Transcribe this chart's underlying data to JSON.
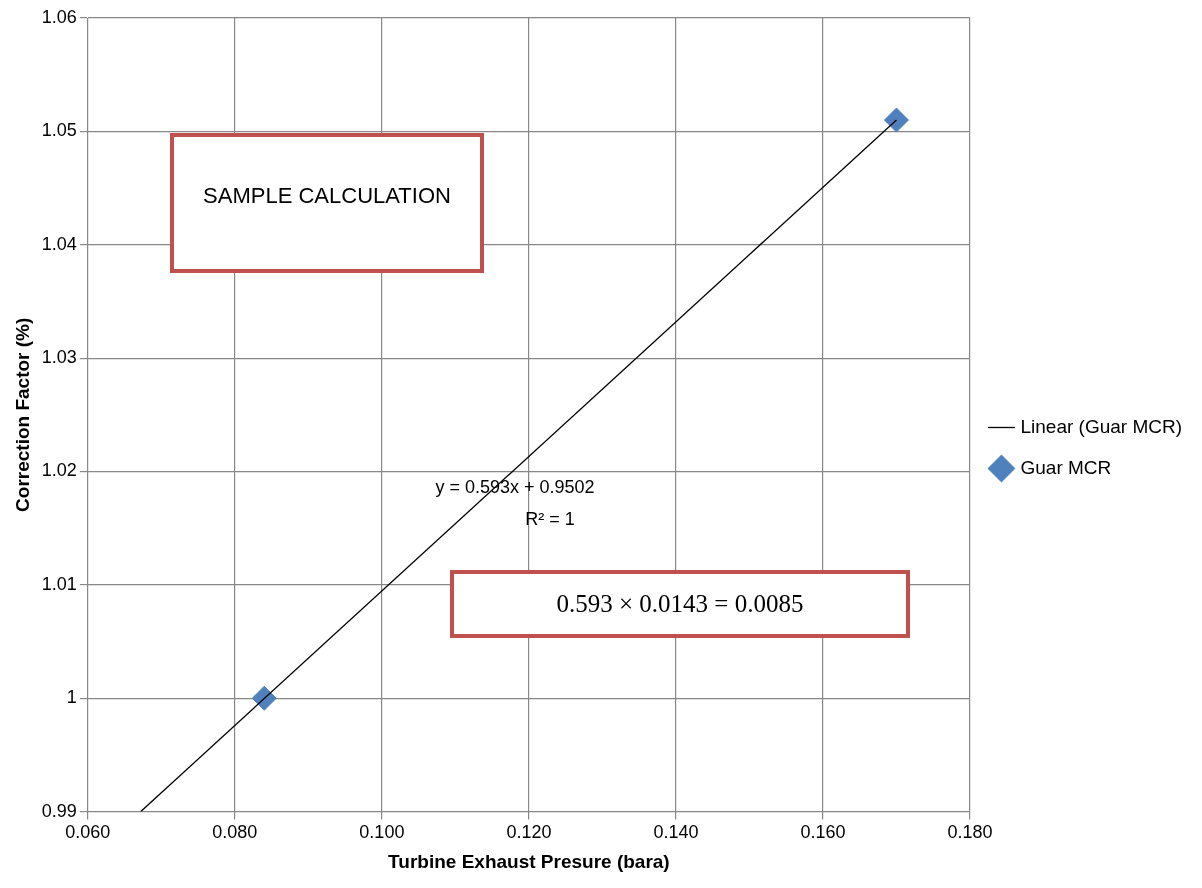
{
  "chart_data": {
    "type": "scatter",
    "xlabel": "Turbine Exhaust Presure (bara)",
    "ylabel": "Correction Factor (%)",
    "xlim": [
      0.06,
      0.18
    ],
    "xticks": [
      {
        "value": 0.06,
        "label": "0.060"
      },
      {
        "value": 0.08,
        "label": "0.080"
      },
      {
        "value": 0.1,
        "label": "0.100"
      },
      {
        "value": 0.12,
        "label": "0.120"
      },
      {
        "value": 0.14,
        "label": "0.140"
      },
      {
        "value": 0.16,
        "label": "0.160"
      },
      {
        "value": 0.18,
        "label": "0.180"
      }
    ],
    "ylim": [
      0.99,
      1.06
    ],
    "yticks": [
      0.99,
      1,
      1.01,
      1.02,
      1.03,
      1.04,
      1.05,
      1.06
    ],
    "grid": true,
    "legend": "right",
    "marker": "diamond",
    "series": [
      {
        "name": "Guar MCR",
        "type": "scatter",
        "color": "#4f81bd",
        "x": [
          0.084,
          0.17
        ],
        "values": [
          1.0,
          1.051
        ]
      },
      {
        "name": "Linear (Guar MCR)",
        "type": "line",
        "color": "#000000",
        "marker": "none",
        "x": [
          0.0672,
          0.17
        ],
        "values": [
          0.99,
          1.051
        ]
      }
    ],
    "annotations": [
      "y = 0.593x + 0.9502",
      "R² = 1",
      "SAMPLE CALCULATION",
      "0.593 × 0.0143 = 0.0085"
    ]
  }
}
